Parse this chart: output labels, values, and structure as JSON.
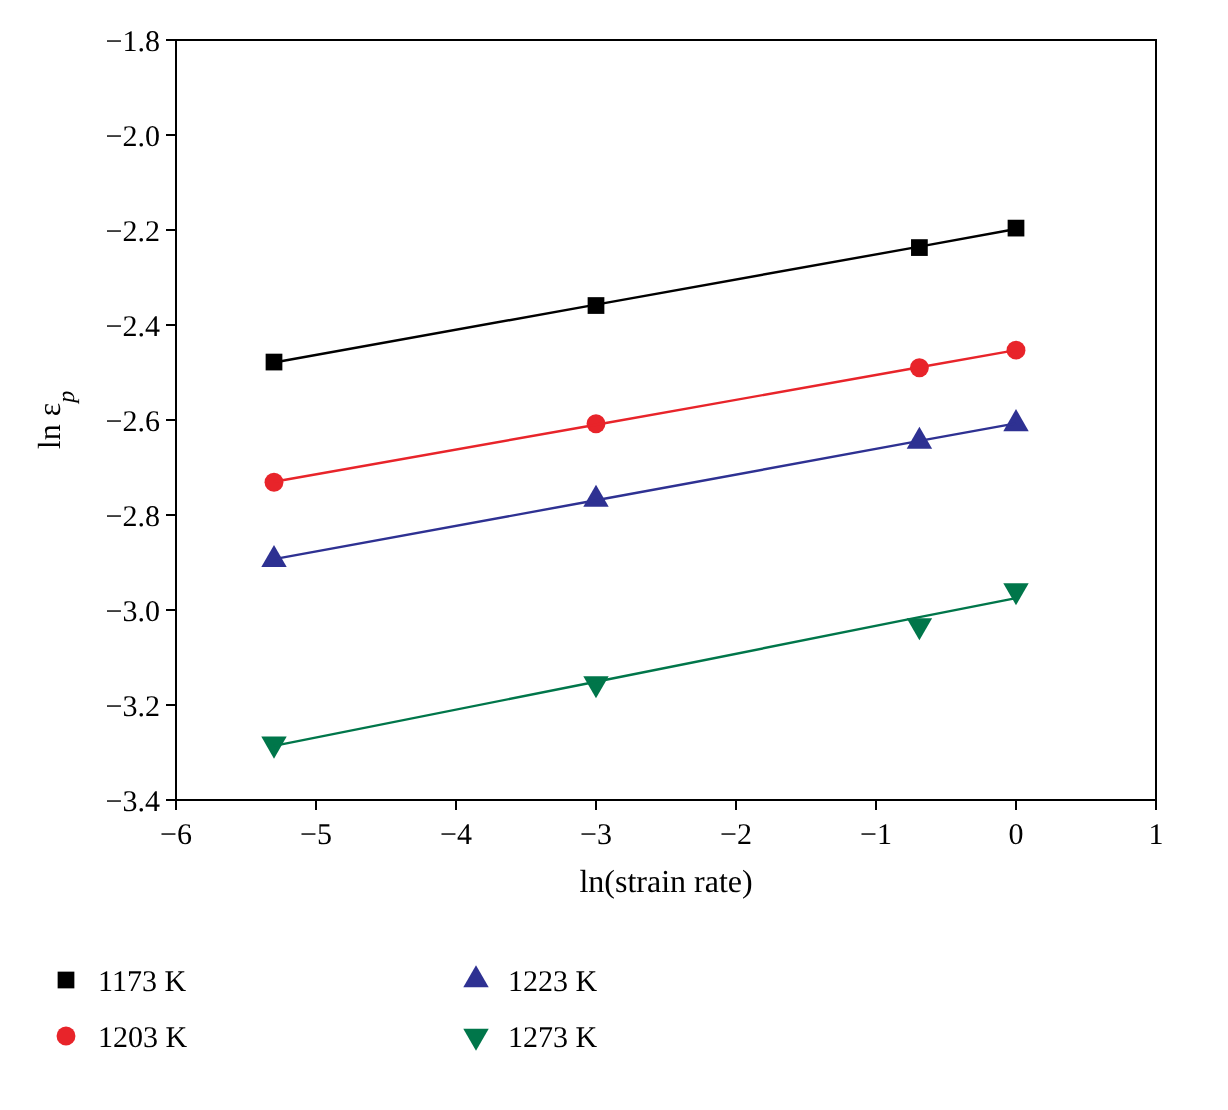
{
  "chart_data": {
    "type": "scatter",
    "xlabel": "ln(strain rate)",
    "ylabel": "ln ε$_{p}$",
    "xlim": [
      -6,
      1
    ],
    "ylim": [
      -3.4,
      -1.8
    ],
    "xticks": [
      {
        "value": -6,
        "label": "−6"
      },
      {
        "value": -5,
        "label": "−5"
      },
      {
        "value": -4,
        "label": "−4"
      },
      {
        "value": -3,
        "label": "−3"
      },
      {
        "value": -2,
        "label": "−2"
      },
      {
        "value": -1,
        "label": "−1"
      },
      0,
      1
    ],
    "yticks": [
      {
        "value": -3.4,
        "label": "−3.4"
      },
      {
        "value": -3.2,
        "label": "−3.2"
      },
      {
        "value": -3.0,
        "label": "−3.0"
      },
      {
        "value": -2.8,
        "label": "−2.8"
      },
      {
        "value": -2.6,
        "label": "−2.6"
      },
      {
        "value": -2.4,
        "label": "−2.4"
      },
      {
        "value": -2.2,
        "label": "−2.2"
      },
      {
        "value": -2.0,
        "label": "−2.0"
      },
      {
        "value": -1.8,
        "label": "−1.8"
      }
    ],
    "grid": false,
    "legend": "bottom",
    "x": [
      -5.3,
      -3,
      -0.69,
      0
    ],
    "series": [
      {
        "name": "1173 K",
        "color": "#000000",
        "marker": "square",
        "values": [
          -2.478,
          -2.359,
          -2.237,
          -2.196
        ]
      },
      {
        "name": "1203 K",
        "color": "#e8242a",
        "marker": "circle",
        "values": [
          -2.731,
          -2.608,
          -2.49,
          -2.453
        ]
      },
      {
        "name": "1223 K",
        "color": "#2e3192",
        "marker": "triangle",
        "values": [
          -2.894,
          -2.767,
          -2.645,
          -2.608
        ]
      },
      {
        "name": "1273 K",
        "color": "#00764a",
        "marker": "triangle-down",
        "values": [
          -3.282,
          -3.155,
          -3.033,
          -2.959
        ]
      },
      {
        "type": "line",
        "color": "#000000",
        "values": [
          -2.479,
          -2.357,
          -2.235,
          -2.198
        ]
      },
      {
        "type": "line",
        "color": "#e8242a",
        "values": [
          -2.73,
          -2.61,
          -2.489,
          -2.453
        ]
      },
      {
        "type": "line",
        "color": "#2e3192",
        "values": [
          -2.893,
          -2.769,
          -2.644,
          -2.607
        ]
      },
      {
        "type": "line",
        "color": "#00764a",
        "values": [
          -3.286,
          -3.151,
          -3.015,
          -2.975
        ]
      }
    ]
  }
}
